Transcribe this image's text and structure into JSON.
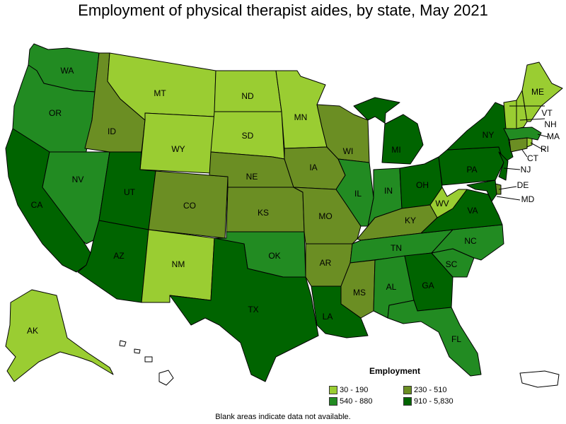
{
  "title": "Employment of physical therapist aides, by state, May 2021",
  "colors": {
    "c1": "#9acd32",
    "c2": "#6b8e23",
    "c3": "#228b22",
    "c4": "#006400"
  },
  "legend": {
    "title": "Employment",
    "items": [
      {
        "label": "30 - 190",
        "color_key": "c1"
      },
      {
        "label": "230 - 510",
        "color_key": "c2"
      },
      {
        "label": "540 - 880",
        "color_key": "c3"
      },
      {
        "label": "910 - 5,830",
        "color_key": "c4"
      }
    ]
  },
  "note": "Blank areas indicate data not available.",
  "states": {
    "WA": {
      "label": "WA",
      "class": "540 - 880"
    },
    "OR": {
      "label": "OR",
      "class": "540 - 880"
    },
    "CA": {
      "label": "CA",
      "class": "910 - 5,830"
    },
    "NV": {
      "label": "NV",
      "class": "540 - 880"
    },
    "ID": {
      "label": "ID",
      "class": "230 - 510"
    },
    "MT": {
      "label": "MT",
      "class": "30 - 190"
    },
    "WY": {
      "label": "WY",
      "class": "30 - 190"
    },
    "UT": {
      "label": "UT",
      "class": "910 - 5,830"
    },
    "AZ": {
      "label": "AZ",
      "class": "910 - 5,830"
    },
    "CO": {
      "label": "CO",
      "class": "230 - 510"
    },
    "NM": {
      "label": "NM",
      "class": "30 - 190"
    },
    "ND": {
      "label": "ND",
      "class": "30 - 190"
    },
    "SD": {
      "label": "SD",
      "class": "30 - 190"
    },
    "NE": {
      "label": "NE",
      "class": "230 - 510"
    },
    "KS": {
      "label": "KS",
      "class": "230 - 510"
    },
    "OK": {
      "label": "OK",
      "class": "540 - 880"
    },
    "TX": {
      "label": "TX",
      "class": "910 - 5,830"
    },
    "MN": {
      "label": "MN",
      "class": "30 - 190"
    },
    "IA": {
      "label": "IA",
      "class": "230 - 510"
    },
    "MO": {
      "label": "MO",
      "class": "230 - 510"
    },
    "AR": {
      "label": "AR",
      "class": "230 - 510"
    },
    "LA": {
      "label": "LA",
      "class": "910 - 5,830"
    },
    "WI": {
      "label": "WI",
      "class": "230 - 510"
    },
    "IL": {
      "label": "IL",
      "class": "540 - 880"
    },
    "MI": {
      "label": "MI",
      "class": "910 - 5,830"
    },
    "IN": {
      "label": "IN",
      "class": "540 - 880"
    },
    "OH": {
      "label": "OH",
      "class": "910 - 5,830"
    },
    "KY": {
      "label": "KY",
      "class": "230 - 510"
    },
    "TN": {
      "label": "TN",
      "class": "540 - 880"
    },
    "MS": {
      "label": "MS",
      "class": "230 - 510"
    },
    "AL": {
      "label": "AL",
      "class": "540 - 880"
    },
    "GA": {
      "label": "GA",
      "class": "910 - 5,830"
    },
    "FL": {
      "label": "FL",
      "class": "540 - 880"
    },
    "SC": {
      "label": "SC",
      "class": "540 - 880"
    },
    "NC": {
      "label": "NC",
      "class": "540 - 880"
    },
    "VA": {
      "label": "VA",
      "class": "910 - 5,830"
    },
    "WV": {
      "label": "WV",
      "class": "30 - 190"
    },
    "PA": {
      "label": "PA",
      "class": "910 - 5,830"
    },
    "NY": {
      "label": "NY",
      "class": "910 - 5,830"
    },
    "ME": {
      "label": "ME",
      "class": "30 - 190"
    },
    "NH": {
      "label": "NH",
      "class": "30 - 190"
    },
    "VT": {
      "label": "VT",
      "class": "30 - 190"
    },
    "MA": {
      "label": "MA",
      "class": "540 - 880"
    },
    "RI": {
      "label": "RI",
      "class": "30 - 190"
    },
    "CT": {
      "label": "CT",
      "class": "230 - 510"
    },
    "NJ": {
      "label": "NJ",
      "class": "910 - 5,830"
    },
    "DE": {
      "label": "DE",
      "class": "230 - 510"
    },
    "MD": {
      "label": "MD",
      "class": "910 - 5,830"
    },
    "AK": {
      "label": "AK",
      "class": "30 - 190"
    }
  }
}
